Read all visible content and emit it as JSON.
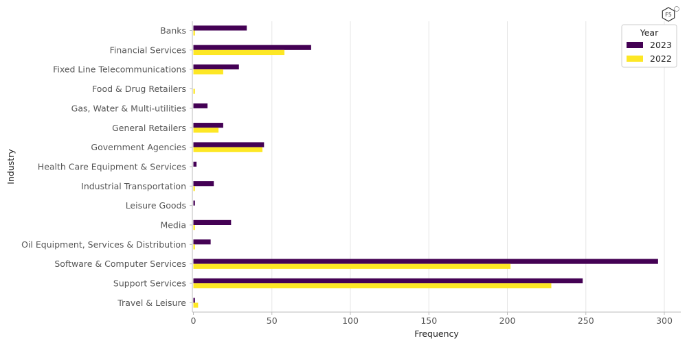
{
  "chart_data": {
    "type": "bar",
    "orientation": "horizontal",
    "categories": [
      "Banks",
      "Financial Services",
      "Fixed Line Telecommunications",
      "Food & Drug Retailers",
      "Gas, Water & Multi-utilities",
      "General Retailers",
      "Government Agencies",
      "Health Care Equipment & Services",
      "Industrial Transportation",
      "Leisure Goods",
      "Media",
      "Oil Equipment, Services & Distribution",
      "Software & Computer Services",
      "Support Services",
      "Travel & Leisure"
    ],
    "series": [
      {
        "name": "2023",
        "color": "#440154",
        "values": [
          34,
          75,
          29,
          0,
          9,
          19,
          45,
          2,
          13,
          1,
          24,
          11,
          296,
          248,
          1
        ]
      },
      {
        "name": "2022",
        "color": "#fde725",
        "values": [
          1,
          58,
          19,
          1,
          0,
          16,
          44,
          0,
          1,
          0,
          1,
          1,
          202,
          228,
          3
        ]
      }
    ],
    "xlabel": "Frequency",
    "ylabel": "Industry",
    "xlim": [
      0,
      310
    ],
    "xticks": [
      0,
      50,
      100,
      150,
      200,
      250,
      300
    ],
    "grid": "vertical",
    "legend": {
      "title": "Year",
      "position": "top-right"
    }
  },
  "logo": {
    "text": "F5"
  }
}
